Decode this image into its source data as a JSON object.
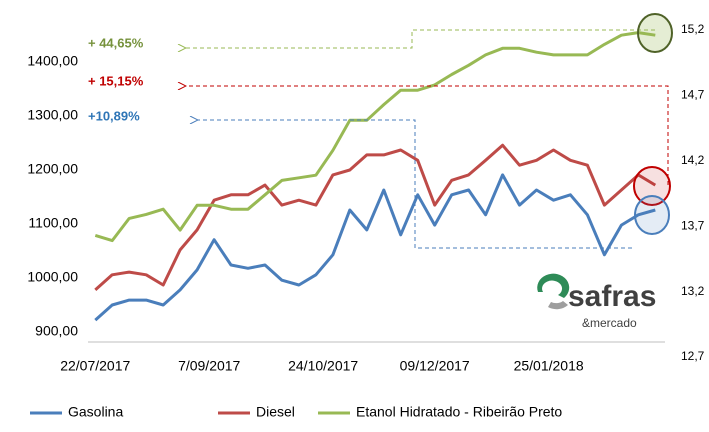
{
  "chart_data": {
    "type": "line",
    "x": [
      "22/07/2017",
      "29/07/2017",
      "05/08/2017",
      "12/08/2017",
      "19/08/2017",
      "26/08/2017",
      "02/09/2017",
      "09/09/2017",
      "16/09/2017",
      "23/09/2017",
      "30/09/2017",
      "07/10/2017",
      "14/10/2017",
      "21/10/2017",
      "28/10/2017",
      "04/11/2017",
      "11/11/2017",
      "18/11/2017",
      "25/11/2017",
      "02/12/2017",
      "09/12/2017",
      "16/12/2017",
      "23/12/2017",
      "30/12/2017",
      "06/01/2018",
      "13/01/2018",
      "20/01/2018",
      "27/01/2018",
      "03/02/2018",
      "10/02/2018",
      "17/02/2018",
      "24/02/2018",
      "03/03/2018",
      "10/03/2018"
    ],
    "series": [
      {
        "name": "Gasolina",
        "color": "#4a7ebb",
        "values": [
          922,
          950,
          959,
          959,
          950,
          978,
          1015,
          1071,
          1024,
          1018,
          1024,
          996,
          987,
          1006,
          1043,
          1126,
          1089,
          1163,
          1080,
          1154,
          1098,
          1154,
          1163,
          1117,
          1191,
          1135,
          1163,
          1144,
          1154,
          1117,
          1043,
          1098,
          1117,
          1126
        ]
      },
      {
        "name": "Diesel",
        "color": "#be4b48",
        "values": [
          978,
          1006,
          1011,
          1006,
          987,
          1052,
          1089,
          1144,
          1154,
          1154,
          1172,
          1135,
          1144,
          1135,
          1191,
          1200,
          1228,
          1228,
          1237,
          1218,
          1135,
          1181,
          1191,
          1218,
          1246,
          1209,
          1218,
          1237,
          1218,
          1209,
          1135,
          1163,
          1191,
          1172
        ]
      },
      {
        "name": "Etanol Hidratado - Ribeirão Preto",
        "color": "#98b954",
        "axis": "y2",
        "values": [
          13.63,
          13.59,
          13.76,
          13.79,
          13.83,
          13.67,
          13.86,
          13.86,
          13.83,
          13.83,
          13.94,
          14.05,
          14.07,
          14.09,
          14.28,
          14.51,
          14.51,
          14.63,
          14.74,
          14.74,
          14.78,
          14.86,
          14.93,
          15.01,
          15.06,
          15.06,
          15.03,
          15.01,
          15.01,
          15.01,
          15.09,
          15.16,
          15.18,
          15.16
        ]
      }
    ],
    "xlim": [
      "19/07/2017",
      "14/03/2018"
    ],
    "xticks": [
      "22/07/2017",
      {
        "value": "07/09/2017",
        "label": "7/09/2017"
      },
      "24/10/2017",
      "09/12/2017",
      "25/01/2018"
    ],
    "ylim": [
      853.7,
      1459.3
    ],
    "yticks": [
      {
        "value": 900,
        "label": "900,00"
      },
      {
        "value": 1000,
        "label": "1000,00"
      },
      {
        "value": 1100,
        "label": "1100,00"
      },
      {
        "value": 1200,
        "label": "1200,00"
      },
      {
        "value": 1300,
        "label": "1300,00"
      },
      {
        "value": 1400,
        "label": "1400,00"
      }
    ],
    "y2lim": [
      12.7,
      15.2
    ],
    "y2ticks": [
      {
        "value": 12.7,
        "label": "12,7"
      },
      {
        "value": 13.2,
        "label": "13,2"
      },
      {
        "value": 13.7,
        "label": "13,7"
      },
      {
        "value": 14.2,
        "label": "14,2"
      },
      {
        "value": 14.7,
        "label": "14,7"
      },
      {
        "value": 15.2,
        "label": "15,2"
      }
    ],
    "annotations": [
      "+ 44,65%",
      "+ 15,15%",
      "+10,89%"
    ],
    "logo": [
      "safras",
      "&mercado"
    ]
  }
}
